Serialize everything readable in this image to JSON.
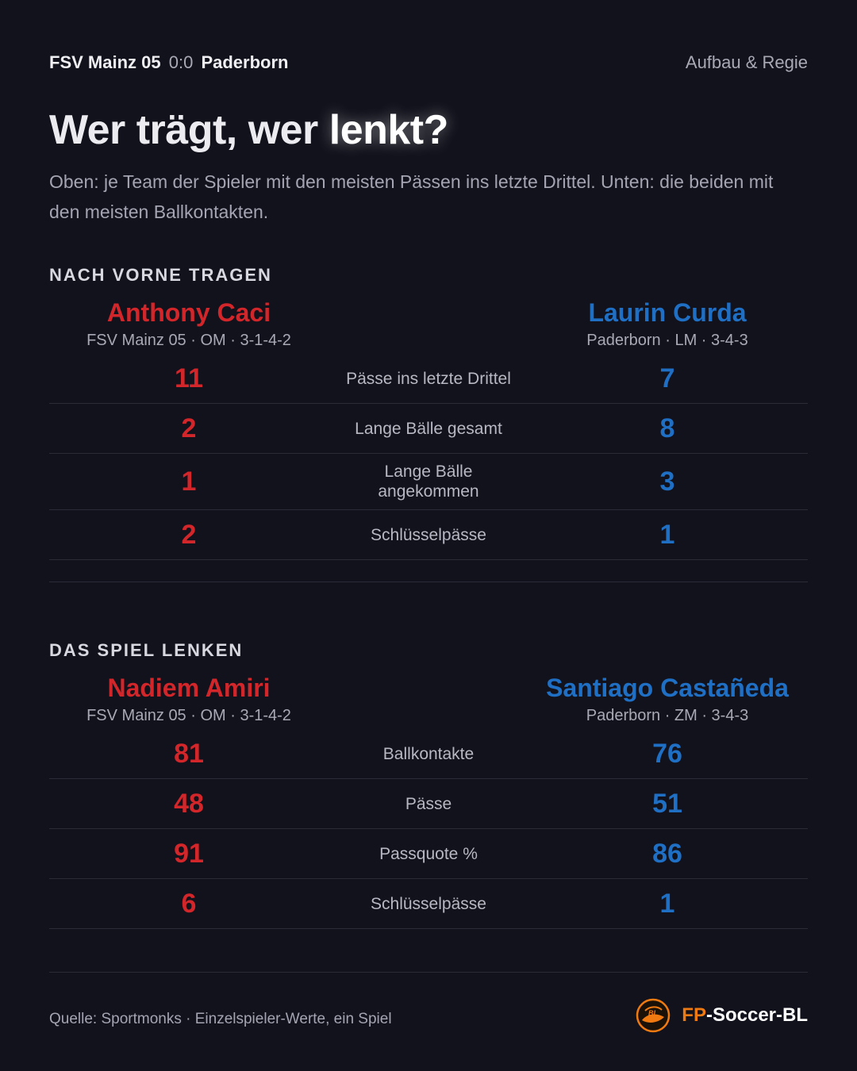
{
  "header": {
    "home_team": "FSV Mainz 05",
    "score": "0:0",
    "away_team": "Paderborn",
    "section": "Aufbau & Regie"
  },
  "title": {
    "part1": "Wer trägt, wer ",
    "part2": "lenkt?"
  },
  "subtitle": "Oben: je Team der Spieler mit den meisten Pässen ins letzte Drittel. Unten: die beiden mit den meisten Ballkontakten.",
  "section1": {
    "title": "NACH VORNE TRAGEN",
    "left_player": {
      "name": "Anthony Caci",
      "meta": "FSV Mainz 05 · OM · 3-1-4-2"
    },
    "right_player": {
      "name": "Laurin Curda",
      "meta": "Paderborn · LM · 3-4-3"
    },
    "rows": [
      {
        "label": "Pässe ins letzte Drittel",
        "left": "11",
        "right": "7"
      },
      {
        "label": "Lange Bälle gesamt",
        "left": "2",
        "right": "8"
      },
      {
        "label": "Lange Bälle angekommen",
        "left": "1",
        "right": "3"
      },
      {
        "label": "Schlüsselpässe",
        "left": "2",
        "right": "1"
      }
    ]
  },
  "section2": {
    "title": "DAS SPIEL LENKEN",
    "left_player": {
      "name": "Nadiem Amiri",
      "meta": "FSV Mainz 05 · OM · 3-1-4-2"
    },
    "right_player": {
      "name": "Santiago Castañeda",
      "meta": "Paderborn · ZM · 3-4-3"
    },
    "rows": [
      {
        "label": "Ballkontakte",
        "left": "81",
        "right": "76"
      },
      {
        "label": "Pässe",
        "left": "48",
        "right": "51"
      },
      {
        "label": "Passquote %",
        "left": "91",
        "right": "86"
      },
      {
        "label": "Schlüsselpässe",
        "left": "6",
        "right": "1"
      }
    ]
  },
  "footer": {
    "source": "Quelle: Sportmonks · Einzelspieler-Werte, ein Spiel",
    "brand_prefix": "FP",
    "brand_suffix": "-Soccer-BL",
    "logo_icon": "bl-soccer-logo-icon",
    "logo_text": "BL"
  },
  "colors": {
    "background": "#12121c",
    "home": "#d3262a",
    "away": "#1f6fc4",
    "brand_accent": "#f07a12"
  }
}
